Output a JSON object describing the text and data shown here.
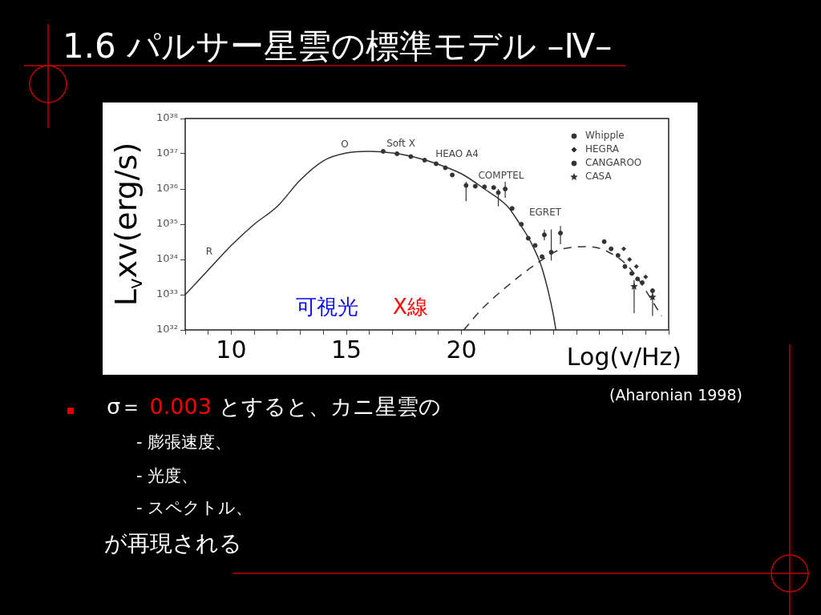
{
  "chart_data": {
    "type": "line",
    "title": "1.6 パルサー星雲の標準モデル –Ⅳ–",
    "xlabel": "Log(v/Hz)",
    "ylabel": "L$_{v}$xv(erg/s)",
    "log": "y",
    "grid": false,
    "legend": "top right",
    "xlim": [
      8,
      29
    ],
    "ylim": [
      1e+32,
      1e+38
    ],
    "xticks": [
      {
        "value": 8,
        "label": null
      },
      {
        "value": 9,
        "label": null
      },
      10,
      {
        "value": 11,
        "label": null
      },
      {
        "value": 12,
        "label": null
      },
      {
        "value": 13,
        "label": null
      },
      {
        "value": 14,
        "label": null
      },
      15,
      {
        "value": 16,
        "label": null
      },
      {
        "value": 17,
        "label": null
      },
      {
        "value": 18,
        "label": null
      },
      {
        "value": 19,
        "label": null
      },
      20,
      {
        "value": 21,
        "label": null
      },
      {
        "value": 22,
        "label": null
      },
      {
        "value": 23,
        "label": null
      },
      {
        "value": 24,
        "label": null
      },
      {
        "value": 25,
        "label": null
      },
      {
        "value": 26,
        "label": null
      },
      {
        "value": 27,
        "label": null
      },
      {
        "value": 28,
        "label": null
      },
      {
        "value": 29,
        "label": null
      }
    ],
    "yticks": [
      {
        "value": 1e+32,
        "label": "10³²"
      },
      {
        "value": 1e+33,
        "label": "10³³"
      },
      {
        "value": 1e+34,
        "label": "10³⁴"
      },
      {
        "value": 1e+35,
        "label": "10³⁵"
      },
      {
        "value": 1e+36,
        "label": "10³⁶"
      },
      {
        "value": 1e+37,
        "label": "10³⁷"
      },
      {
        "value": 1e+38,
        "label": "10³⁸"
      }
    ],
    "series": [
      {
        "color": "#333333",
        "marker": "none",
        "line_style": "solid",
        "x": [
          8,
          9,
          10,
          11,
          12,
          13,
          14,
          15,
          16,
          17,
          18,
          19,
          20,
          21,
          22,
          22.5,
          23,
          23.5,
          24,
          24.1
        ],
        "values": [
          1e+33,
          5e+33,
          2.5e+34,
          1e+35,
          3.2e+35,
          1.8e+36,
          6.3e+36,
          1.05e+37,
          1.17e+37,
          1.05e+37,
          7.9e+36,
          5e+36,
          2.7e+36,
          1e+36,
          3.2e+35,
          1.1e+35,
          3.2e+34,
          5.6e+33,
          2.5e+32,
          1e+32
        ]
      },
      {
        "color": "#333333",
        "marker": "none",
        "line_style": "dashed",
        "x": [
          20.1,
          20.9,
          22.1,
          23.3,
          24.4,
          25.6,
          26.4,
          27.3,
          28.7
        ],
        "values": [
          1e+32,
          4e+32,
          2e+33,
          7.9e+33,
          2e+34,
          2.3e+34,
          1.6e+34,
          5.8e+33,
          2.5e+32
        ]
      },
      {
        "type": "scatter",
        "color": "#333333",
        "marker": "circle",
        "x": [
          16.6,
          17.2,
          17.8,
          18.4,
          18.9,
          19.3,
          19.6,
          20.2,
          20.6,
          21.0,
          21.4,
          21.6,
          21.9,
          22.2,
          22.6,
          22.9,
          23.2,
          23.5,
          23.6,
          23.9,
          24.3
        ],
        "values": [
          1.17e+37,
          1e+37,
          8.3e+36,
          6.6e+36,
          5.2e+36,
          4e+36,
          2.5e+36,
          1.26e+36,
          1.2e+36,
          1.15e+36,
          1.1e+36,
          7.9e+35,
          1e+36,
          2.8e+35,
          1e+35,
          4e+34,
          2.5e+34,
          1.2e+34,
          5e+34,
          1.6e+34,
          5.6e+34
        ],
        "errors": [
          null,
          null,
          null,
          null,
          null,
          null,
          null,
          [
            4.5e+35,
            1.6e+36
          ],
          null,
          null,
          null,
          [
            3.2e+35,
            1e+36
          ],
          [
            5.6e+35,
            1.6e+36
          ],
          null,
          null,
          null,
          null,
          null,
          [
            3.5e+34,
            7e+34
          ],
          [
            9.3e+33,
            7.1e+34
          ],
          [
            2.7e+34,
            8.9e+34
          ]
        ]
      },
      {
        "type": "scatter",
        "name": "Whipple",
        "color": "#333333",
        "marker": "circle",
        "x": [
          26.2,
          26.5,
          26.8,
          27.1,
          27.4
        ],
        "values": [
          3.2e+34,
          2e+34,
          1.3e+34,
          6.3e+33,
          4e+33
        ]
      },
      {
        "type": "scatter",
        "name": "HEGRA",
        "color": "#333333",
        "marker": "diamond",
        "x": [
          27.05,
          27.3,
          27.6,
          28.0
        ],
        "values": [
          2e+34,
          1e+34,
          6.3e+33,
          3.2e+33
        ]
      },
      {
        "type": "scatter",
        "name": "CANGAROO",
        "color": "#333333",
        "marker": "circle",
        "x": [
          27.65,
          27.85,
          28.3
        ],
        "values": [
          2.8e+33,
          2.2e+33,
          1.3e+33
        ]
      },
      {
        "type": "scatter",
        "name": "CASA",
        "color": "#333333",
        "marker": "star",
        "x": [
          27.5,
          28.3
        ],
        "values": [
          1.7e+33,
          8.5e+32
        ],
        "errors": [
          [
            3e+32,
            2.6e+33
          ],
          [
            2.5e+32,
            1.3e+33
          ]
        ]
      }
    ],
    "annotations": [
      "R",
      "O",
      "Soft X",
      "HEAO A4",
      "COMPTEL",
      "EGRET",
      "可視光",
      "X線",
      "(Aharonian 1998)",
      "σ＝",
      "0.003",
      "とすると、カニ星雲の",
      "- 膨張速度、",
      "- 光度、",
      "- スペクトル、",
      "が再現される"
    ]
  }
}
